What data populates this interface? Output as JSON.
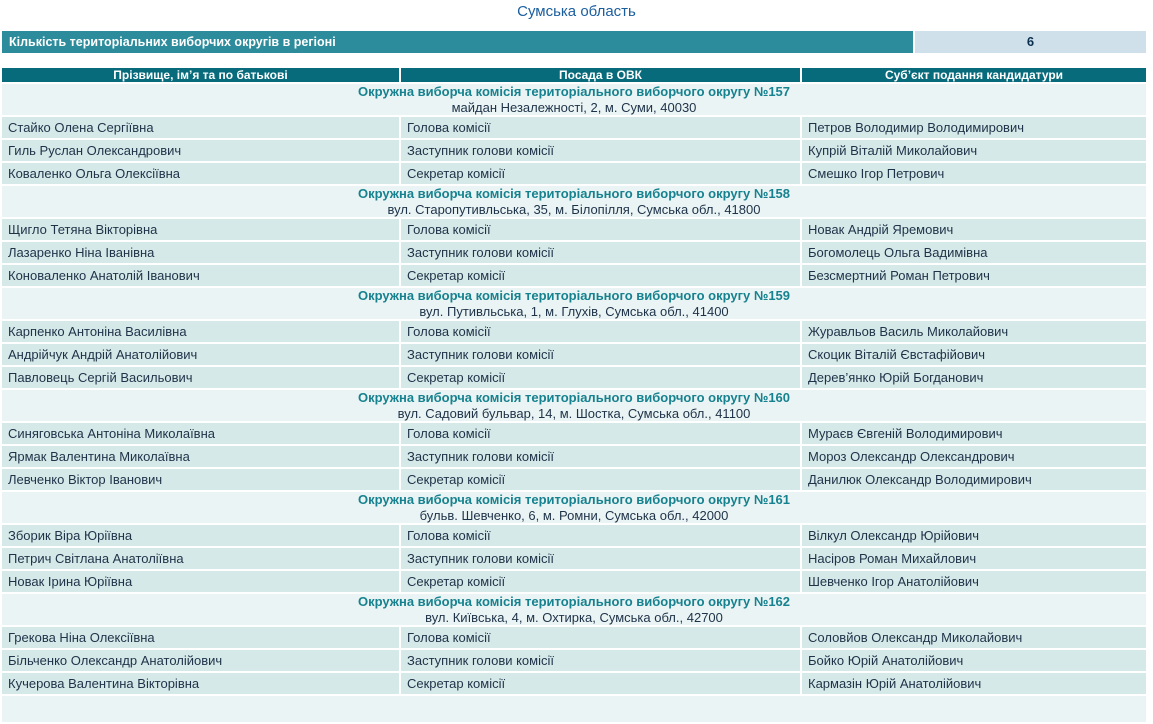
{
  "page": {
    "title": "Сумська область"
  },
  "summary": {
    "label": "Кількість територіальних виборчих округів в регіоні",
    "value": "6"
  },
  "table": {
    "headers": [
      "Прізвище, ім’я та по батькові",
      "Посада в ОВК",
      "Суб’єкт подання кандидатури"
    ],
    "sections": [
      {
        "title": "Окружна виборча комісія територіального виборчого округу №157",
        "address": "майдан Незалежності, 2, м. Суми, 40030",
        "rows": [
          {
            "name": "Стайко Олена Сергіївна",
            "position": "Голова комісії",
            "nominator": "Петров Володимир Володимирович"
          },
          {
            "name": "Гиль Руслан Олександрович",
            "position": "Заступник голови комісії",
            "nominator": "Купрій Віталій Миколайович"
          },
          {
            "name": "Коваленко Ольга Олексіївна",
            "position": "Секретар комісії",
            "nominator": "Смешко Ігор Петрович"
          }
        ]
      },
      {
        "title": "Окружна виборча комісія територіального виборчого округу №158",
        "address": "вул. Старопутивльська, 35, м. Білопілля, Сумська обл., 41800",
        "rows": [
          {
            "name": "Щигло Тетяна Вікторівна",
            "position": "Голова комісії",
            "nominator": "Новак Андрій Яремович"
          },
          {
            "name": "Лазаренко Ніна Іванівна",
            "position": "Заступник голови комісії",
            "nominator": "Богомолець Ольга Вадимівна"
          },
          {
            "name": "Коноваленко Анатолій Іванович",
            "position": "Секретар комісії",
            "nominator": "Безсмертний Роман Петрович"
          }
        ]
      },
      {
        "title": "Окружна виборча комісія територіального виборчого округу №159",
        "address": "вул. Путивльська, 1, м. Глухів, Сумська обл., 41400",
        "rows": [
          {
            "name": "Карпенко Антоніна Василівна",
            "position": "Голова комісії",
            "nominator": "Журавльов Василь Миколайович"
          },
          {
            "name": "Андрійчук Андрій Анатолійович",
            "position": "Заступник голови комісії",
            "nominator": "Скоцик Віталій Євстафійович"
          },
          {
            "name": "Павловець Сергій Васильович",
            "position": "Секретар комісії",
            "nominator": "Дерев’янко Юрій Богданович"
          }
        ]
      },
      {
        "title": "Окружна виборча комісія територіального виборчого округу №160",
        "address": "вул. Садовий бульвар, 14, м. Шостка, Сумська обл., 41100",
        "rows": [
          {
            "name": "Синяговська Антоніна Миколаївна",
            "position": "Голова комісії",
            "nominator": "Мураєв Євгеній Володимирович"
          },
          {
            "name": "Ярмак Валентина Миколаївна",
            "position": "Заступник голови комісії",
            "nominator": "Мороз Олександр Олександрович"
          },
          {
            "name": "Левченко Віктор Іванович",
            "position": "Секретар комісії",
            "nominator": "Данилюк Олександр Володимирович"
          }
        ]
      },
      {
        "title": "Окружна виборча комісія територіального виборчого округу №161",
        "address": "бульв. Шевченко, 6, м. Ромни, Сумська обл., 42000",
        "rows": [
          {
            "name": "Зборик Віра Юріївна",
            "position": "Голова комісії",
            "nominator": "Вілкул Олександр Юрійович"
          },
          {
            "name": "Петрич Світлана Анатоліївна",
            "position": "Заступник голови комісії",
            "nominator": "Насіров Роман Михайлович"
          },
          {
            "name": "Новак Ірина Юріївна",
            "position": "Секретар комісії",
            "nominator": "Шевченко Ігор Анатолійович"
          }
        ]
      },
      {
        "title": "Окружна виборча комісія територіального виборчого округу №162",
        "address": "вул. Київська, 4, м. Охтирка, Сумська обл., 42700",
        "rows": [
          {
            "name": "Грекова Ніна Олексіївна",
            "position": "Голова комісії",
            "nominator": "Соловйов Олександр Миколайович"
          },
          {
            "name": "Більченко Олександр Анатолійович",
            "position": "Заступник голови комісії",
            "nominator": "Бойко Юрій Анатолійович"
          },
          {
            "name": "Кучерова Валентина Вікторівна",
            "position": "Секретар комісії",
            "nominator": "Кармазін Юрій Анатолійович"
          }
        ]
      }
    ]
  },
  "colors": {
    "title_text": "#1b5e9e",
    "summary_bar_bg": "#2d8c9b",
    "summary_value_bg": "#cfe0ea",
    "table_header_bg": "#076b7c",
    "data_row_bg": "#d6e9e9",
    "section_row_bg": "#eaf4f4",
    "section_title_text": "#17828f",
    "body_text": "#1e3248"
  }
}
